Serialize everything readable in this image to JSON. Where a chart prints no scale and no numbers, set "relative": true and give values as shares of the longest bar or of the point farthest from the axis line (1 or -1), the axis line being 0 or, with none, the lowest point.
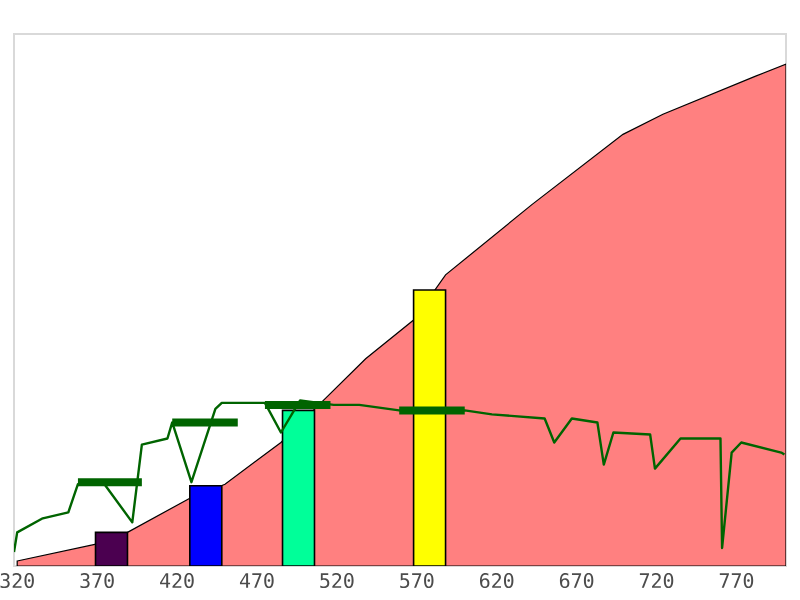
{
  "chart_data": {
    "type": "bar",
    "relative": true,
    "tick_labels": "x",
    "marker": "none",
    "xlim": [
      318,
      801
    ],
    "xticks": [
      320,
      370,
      420,
      470,
      520,
      570,
      620,
      670,
      720,
      770
    ],
    "series": [
      {
        "type": "area",
        "color": "#ff8080",
        "x": [
          320,
          370,
          389,
          428,
          450,
          485,
          510,
          538,
          568,
          588,
          642,
          699,
          724,
          782,
          801
        ],
        "values": [
          0.01,
          0.044,
          0.067,
          0.135,
          0.163,
          0.246,
          0.325,
          0.413,
          0.49,
          0.58,
          0.72,
          0.86,
          0.9,
          0.976,
          1.0
        ]
      },
      {
        "x": [
          379,
          438,
          496,
          578
        ],
        "values": [
          0.067,
          0.16,
          0.31,
          0.55
        ],
        "colors": [
          "#4b0050",
          "#0000ff",
          "#00ff99",
          "#ffff00"
        ]
      },
      {
        "type": "line",
        "color": "#006400",
        "x": [
          318,
          320,
          336,
          352,
          358,
          373,
          392,
          398,
          414,
          417,
          429,
          444,
          448,
          475,
          485,
          497,
          518,
          534,
          568,
          600,
          617,
          650,
          656,
          667,
          683,
          687,
          693,
          716,
          719,
          735,
          760,
          761,
          767,
          773,
          798,
          800
        ],
        "values": [
          0.028,
          0.067,
          0.095,
          0.107,
          0.163,
          0.17,
          0.087,
          0.242,
          0.254,
          0.286,
          0.167,
          0.313,
          0.325,
          0.325,
          0.266,
          0.33,
          0.321,
          0.321,
          0.306,
          0.31,
          0.302,
          0.294,
          0.246,
          0.294,
          0.286,
          0.202,
          0.266,
          0.262,
          0.194,
          0.254,
          0.254,
          0.036,
          0.226,
          0.246,
          0.226,
          0.222
        ]
      },
      {
        "type": "line",
        "color": "#006400",
        "line_style": "solid",
        "x": [
          358,
          398,
          null,
          417,
          458,
          null,
          475,
          516,
          null,
          559,
          600
        ],
        "values": [
          0.167,
          0.167,
          null,
          0.286,
          0.286,
          null,
          0.321,
          0.321,
          null,
          0.31,
          0.31
        ]
      }
    ]
  }
}
